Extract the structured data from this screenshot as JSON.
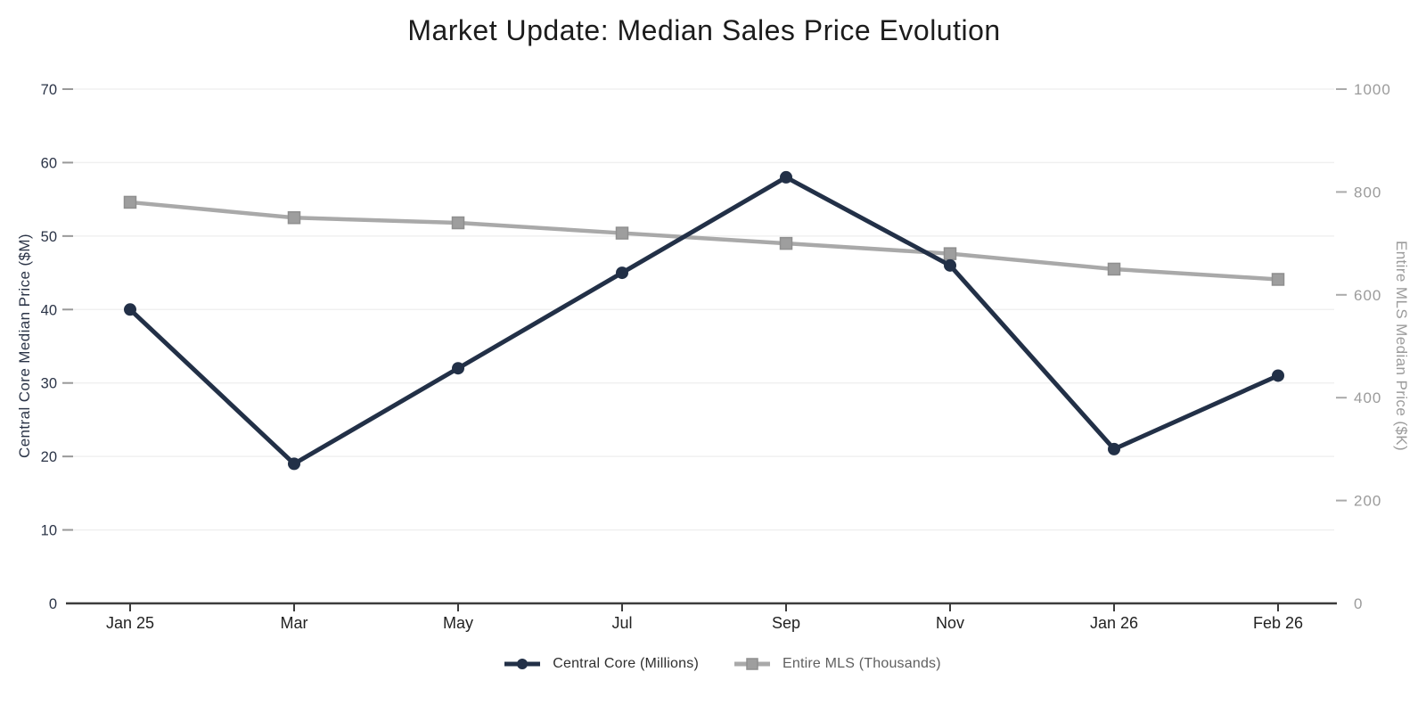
{
  "title": "Market Update: Median Sales Price Evolution",
  "title_color": "#1c1c1c",
  "chart_data": {
    "type": "line",
    "categories": [
      "Jan 25",
      "Mar",
      "May",
      "Jul",
      "Sep",
      "Nov",
      "Jan 26",
      "Feb 26"
    ],
    "series": [
      {
        "name": "Central Core (Millions)",
        "yaxis": "left",
        "values": [
          40,
          19,
          32,
          45,
          58,
          46,
          21,
          31
        ],
        "color": "#223047",
        "line_width": 5,
        "marker": "circle",
        "marker_size": 7,
        "label_color": "#2f2f2f"
      },
      {
        "name": "Entire MLS (Thousands)",
        "yaxis": "right",
        "values": [
          780,
          750,
          740,
          720,
          700,
          680,
          650,
          630
        ],
        "color": "#a9a9a9",
        "line_width": 4.5,
        "marker": "square",
        "marker_size": 13,
        "marker_fill": "#9e9e9e",
        "marker_stroke": "#8f8f8f",
        "label_color": "#5f5f5f"
      }
    ],
    "left_axis": {
      "title": "Central Core Median Price ($M)",
      "ticks": [
        0,
        10,
        20,
        30,
        40,
        50,
        60,
        70
      ],
      "range": [
        0,
        70
      ],
      "label_color": "#2b3447",
      "tick_color": "#999999"
    },
    "right_axis": {
      "title": "Entire MLS Median Price ($K)",
      "ticks": [
        0,
        200,
        400,
        600,
        800,
        1000
      ],
      "range": [
        0,
        1000
      ],
      "label_color": "#9b9b9b",
      "tick_color": "#aaaaaa"
    },
    "x_axis": {
      "label_color": "#222222",
      "line_color": "#3c3c3c"
    },
    "grid": {
      "show": true,
      "color": "#f0f0f0"
    },
    "legend_position": "bottom",
    "background": "#ffffff"
  }
}
